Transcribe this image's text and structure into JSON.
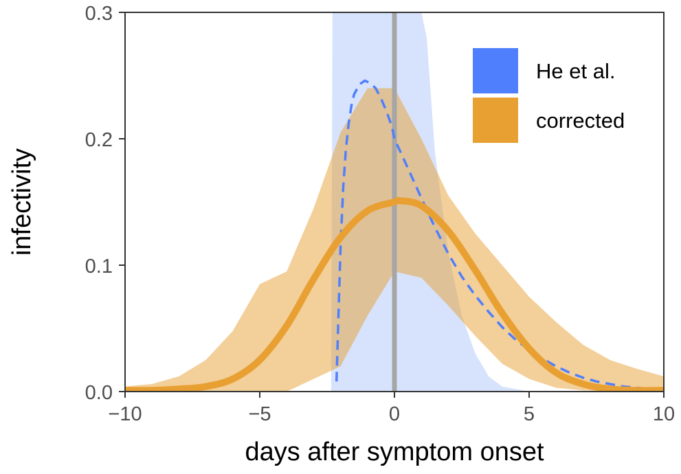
{
  "chart_data": {
    "type": "area",
    "xlabel": "days after symptom onset",
    "ylabel": "infectivity",
    "xlim": [
      -10,
      10
    ],
    "ylim": [
      0,
      0.3
    ],
    "x_ticks": [
      -10,
      -5,
      0,
      5,
      10
    ],
    "x_tick_labels": [
      "−10",
      "−5",
      "0",
      "5",
      "10"
    ],
    "y_ticks": [
      0,
      0.1,
      0.2,
      0.3
    ],
    "y_tick_labels": [
      "0.0",
      "0.1",
      "0.2",
      "0.3"
    ],
    "grid": false,
    "legend_position": "top-right",
    "vline": {
      "x": 0,
      "color": "#a6a6a6"
    },
    "series": [
      {
        "name": "He et al.",
        "color": "#4f7ffc",
        "band_color": "#c9d9fb",
        "line_style": "dashed",
        "line": {
          "x": [
            -2.15,
            -2.1,
            -2.0,
            -1.9,
            -1.8,
            -1.7,
            -1.6,
            -1.5,
            -1.3,
            -1.1,
            -0.9,
            -0.7,
            -0.5,
            -0.3,
            -0.1,
            0.0,
            0.3,
            0.6,
            1.0,
            1.5,
            2.0,
            2.5,
            3.0,
            3.5,
            4.0,
            4.5,
            5.0,
            5.5,
            6.0,
            6.5,
            7.0,
            7.5,
            8.0,
            8.5,
            9.0,
            9.5,
            10.0
          ],
          "y": [
            0.008,
            0.045,
            0.115,
            0.162,
            0.192,
            0.212,
            0.226,
            0.235,
            0.243,
            0.246,
            0.244,
            0.24,
            0.232,
            0.222,
            0.21,
            0.2,
            0.186,
            0.172,
            0.153,
            0.13,
            0.109,
            0.091,
            0.076,
            0.063,
            0.051,
            0.041,
            0.033,
            0.026,
            0.02,
            0.015,
            0.011,
            0.008,
            0.006,
            0.004,
            0.003,
            0.002,
            0.001
          ]
        },
        "band": {
          "x": [
            -2.35,
            -2.3,
            -2.2,
            -2.1,
            -2.0,
            -1.5,
            -1.0,
            -0.9,
            -0.5,
            0.0,
            0.5,
            1.0,
            1.2,
            1.5,
            2.0,
            2.5,
            3.0,
            3.5,
            4.0,
            5.0,
            10.0
          ],
          "lower": [
            0,
            0,
            0,
            0,
            0,
            0,
            0,
            0,
            0,
            0,
            0,
            0,
            0,
            0,
            0,
            0,
            0,
            0,
            0,
            0,
            0
          ],
          "upper": [
            0,
            0.3,
            0.3,
            0.3,
            0.3,
            0.3,
            0.3,
            0.3,
            0.3,
            0.3,
            0.3,
            0.3,
            0.28,
            0.19,
            0.11,
            0.06,
            0.03,
            0.012,
            0.004,
            0.0,
            0.0
          ]
        }
      },
      {
        "name": "corrected",
        "color": "#e8a033",
        "band_color": "#e8a033",
        "line_style": "solid",
        "line": {
          "x": [
            -10,
            -9,
            -8,
            -7,
            -6,
            -5,
            -4,
            -3,
            -2,
            -1,
            0,
            0.2,
            1,
            2,
            3,
            4,
            5,
            6,
            7,
            8,
            9,
            10
          ],
          "y": [
            0.001,
            0.001,
            0.002,
            0.004,
            0.01,
            0.025,
            0.052,
            0.089,
            0.122,
            0.143,
            0.15,
            0.151,
            0.147,
            0.127,
            0.096,
            0.062,
            0.034,
            0.015,
            0.006,
            0.002,
            0.001,
            0.001
          ]
        },
        "band": {
          "x": [
            -10,
            -9,
            -8,
            -7,
            -6,
            -5,
            -4,
            -3,
            -2,
            -1,
            0,
            1,
            2,
            3,
            4,
            5,
            6,
            7,
            8,
            9,
            10
          ],
          "lower": [
            0,
            0,
            0,
            0,
            0,
            0,
            0,
            0.01,
            0.02,
            0.06,
            0.095,
            0.09,
            0.068,
            0.044,
            0.022,
            0.01,
            0.003,
            0.001,
            0,
            0,
            0
          ],
          "upper": [
            0.004,
            0.006,
            0.012,
            0.025,
            0.048,
            0.085,
            0.095,
            0.145,
            0.205,
            0.24,
            0.24,
            0.2,
            0.155,
            0.125,
            0.1,
            0.075,
            0.055,
            0.037,
            0.025,
            0.018,
            0.012
          ]
        }
      }
    ]
  }
}
